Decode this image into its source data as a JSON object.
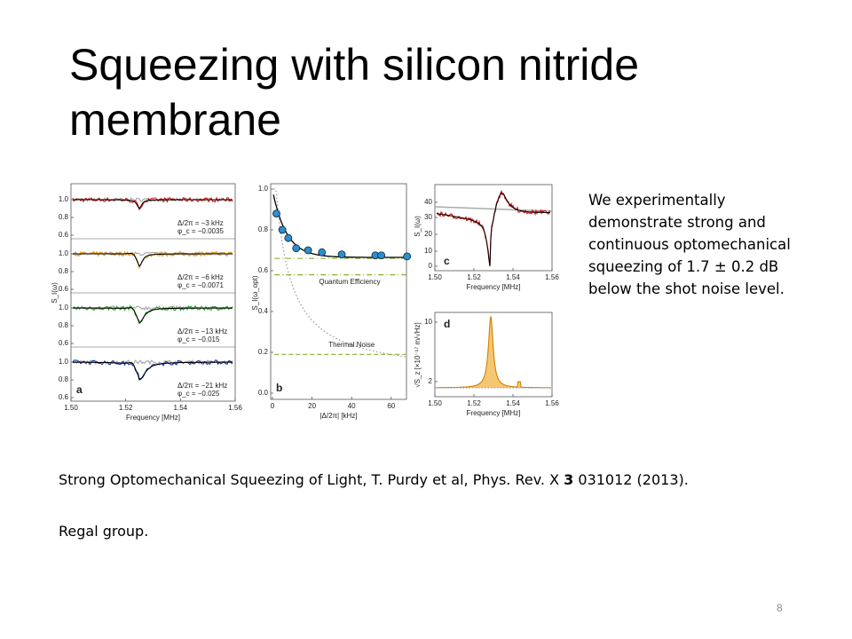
{
  "title": "Squeezing with silicon nitride membrane",
  "figure": {
    "panel_a": {
      "label": "a",
      "ylabel": "S_I(ω)",
      "yticks": [
        "1.0",
        "0.8",
        "0.6"
      ],
      "xticks": [
        "1.50",
        "1.52",
        "1.54",
        "1.56"
      ],
      "xlabel": "Frequency [MHz]",
      "annotations": [
        [
          "Δ/2π = −3 kHz",
          "φ_c = −0.0035"
        ],
        [
          "Δ/2π = −6 kHz",
          "φ_c = −0.0071"
        ],
        [
          "Δ/2π = −13 kHz",
          "φ_c = −0.015"
        ],
        [
          "Δ/2π = −21 kHz",
          "φ_c = −0.025"
        ]
      ]
    },
    "panel_b": {
      "label": "b",
      "ylabel": "S_I(ω_opt)",
      "yticks": [
        "0.0",
        "0.2",
        "0.4",
        "0.6",
        "0.8",
        "1.0"
      ],
      "xticks": [
        "0",
        "20",
        "40",
        "60"
      ],
      "xlabel": "|Δ/2π| [kHz]",
      "efficiency_label": "Quantum Efficiency",
      "thermal_label": "Thermal Noise"
    },
    "panel_c": {
      "label": "c",
      "ylabel": "S_I(ω)",
      "yticks": [
        "40",
        "30",
        "20",
        "10",
        "0"
      ],
      "xticks": [
        "1.50",
        "1.52",
        "1.54",
        "1.56"
      ],
      "xlabel": "Frequency [MHz]"
    },
    "panel_d": {
      "label": "d",
      "ylabel": "√S_z [×10⁻¹⁷ m/√Hz]",
      "yticks": [
        "10",
        "2"
      ],
      "xticks": [
        "1.50",
        "1.52",
        "1.54",
        "1.56"
      ],
      "xlabel": "Frequency [MHz]"
    }
  },
  "description": "We experimentally demonstrate strong and continuous optomechanical squeezing of 1.7 ± 0.2 dB below the shot noise level.",
  "citation": {
    "text": "Strong Optomechanical Squeezing of Light, T. Purdy et al, Phys. Rev. X ",
    "volume": "3",
    "rest": " 031012 (2013)."
  },
  "group": "Regal group.",
  "page_number": "8"
}
